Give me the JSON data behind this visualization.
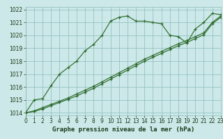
{
  "title": "Graphe pression niveau de la mer (hPa)",
  "bg_color": "#cce8e8",
  "grid_color": "#8bbcbc",
  "line_color": "#2d6b2d",
  "line1_y": [
    1014.0,
    1015.0,
    1015.1,
    1016.1,
    1017.0,
    1017.5,
    1018.0,
    1018.8,
    1019.3,
    1020.0,
    1021.1,
    1021.4,
    1021.5,
    1021.1,
    1021.1,
    1021.0,
    1020.9,
    1020.0,
    1019.9,
    1019.4,
    1020.5,
    1021.0,
    1021.7,
    1021.6
  ],
  "line2_y": [
    1014.0,
    1014.15,
    1014.4,
    1014.65,
    1014.9,
    1015.15,
    1015.45,
    1015.75,
    1016.05,
    1016.4,
    1016.75,
    1017.1,
    1017.45,
    1017.8,
    1018.15,
    1018.45,
    1018.75,
    1019.05,
    1019.35,
    1019.6,
    1019.9,
    1020.2,
    1021.0,
    1021.5
  ],
  "line3_y": [
    1014.0,
    1014.1,
    1014.3,
    1014.55,
    1014.8,
    1015.05,
    1015.3,
    1015.6,
    1015.9,
    1016.25,
    1016.6,
    1016.95,
    1017.3,
    1017.65,
    1018.0,
    1018.3,
    1018.6,
    1018.9,
    1019.2,
    1019.45,
    1019.75,
    1020.05,
    1020.9,
    1021.4
  ],
  "xlim": [
    0,
    23
  ],
  "ylim": [
    1013.8,
    1022.2
  ],
  "yticks": [
    1014,
    1015,
    1016,
    1017,
    1018,
    1019,
    1020,
    1021,
    1022
  ],
  "xticks": [
    0,
    1,
    2,
    3,
    4,
    5,
    6,
    7,
    8,
    9,
    10,
    11,
    12,
    13,
    14,
    15,
    16,
    17,
    18,
    19,
    20,
    21,
    22,
    23
  ],
  "title_fontsize": 6.5,
  "tick_fontsize": 5.5
}
